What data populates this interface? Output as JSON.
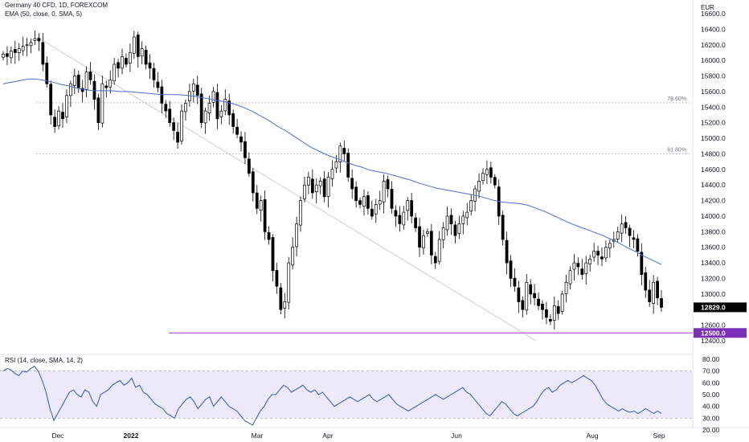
{
  "header": {
    "symbol_line": "Germany 40 CFD, 1D, FOREXCOM",
    "ema_line": "EMA (50, close, 0, SMA, 5)",
    "currency": "EUR"
  },
  "rsi_header": "RSI (14, close, SMA, 14, 2)",
  "colors": {
    "candle": "#000000",
    "ema": "#4a6fd8",
    "rsi": "#3556b5",
    "rsi_band": "#ece9fb",
    "support": "#a33dc9",
    "trendline": "#c4c4c4",
    "price_tag": "#000000",
    "support_tag": "#7b2fb8"
  },
  "chart_data": [
    {
      "type": "candlestick",
      "title": "Germany 40 CFD, 1D, FOREXCOM",
      "y_unit": "EUR",
      "ylim": [
        12100,
        16750
      ],
      "y_ticks": [
        "12400.0",
        "12600.0",
        "12800.0",
        "13000.0",
        "13200.0",
        "13400.0",
        "13600.0",
        "13800.0",
        "14000.0",
        "14200.0",
        "14400.0",
        "14600.0",
        "14800.0",
        "15000.0",
        "15200.0",
        "15400.0",
        "15600.0",
        "15800.0",
        "16000.0",
        "16200.0",
        "16400.0",
        "16600.0"
      ],
      "x_ticks": [
        "Dec",
        "2022",
        "Mar",
        "Apr",
        "Jun",
        "Aug",
        "Sep"
      ],
      "last_price": "12829.0",
      "fib_levels": [
        {
          "label": "78.60%",
          "value": 15455
        },
        {
          "label": "61.80%",
          "value": 14800
        }
      ],
      "support": {
        "label": "12500.0",
        "value": 12500
      },
      "ohlc_close": [
        16080,
        16050,
        16120,
        16100,
        16150,
        16180,
        16200,
        16230,
        16280,
        16250,
        15950,
        15700,
        15300,
        15150,
        15350,
        15250,
        15550,
        15700,
        15800,
        15650,
        15600,
        15850,
        15750,
        15500,
        15200,
        15700,
        15650,
        15750,
        15950,
        15900,
        16050,
        15950,
        16100,
        16300,
        16050,
        16150,
        15950,
        15900,
        15750,
        15650,
        15450,
        15350,
        15200,
        15100,
        14950,
        15350,
        15450,
        15600,
        15700,
        15550,
        15200,
        15350,
        15450,
        15600,
        15250,
        15350,
        15500,
        15300,
        15150,
        15050,
        14950,
        14750,
        14550,
        14300,
        14100,
        14200,
        13800,
        13700,
        13300,
        13100,
        12800,
        12900,
        13400,
        13600,
        13900,
        14200,
        14400,
        14500,
        14300,
        14400,
        14450,
        14250,
        14500,
        14600,
        14700,
        14900,
        14800,
        14500,
        14350,
        14200,
        14150,
        14250,
        14100,
        14000,
        14150,
        14200,
        14450,
        14350,
        14100,
        14000,
        13900,
        14050,
        14200,
        14000,
        13850,
        13600,
        13750,
        13800,
        13500,
        13400,
        13700,
        13850,
        14000,
        13900,
        13750,
        13900,
        14000,
        14050,
        14200,
        14350,
        14450,
        14550,
        14600,
        14500,
        14400,
        14000,
        13700,
        13400,
        13200,
        13100,
        12900,
        12800,
        13150,
        13000,
        12950,
        12850,
        12800,
        12700,
        12650,
        12850,
        12750,
        13000,
        13150,
        13300,
        13400,
        13350,
        13250,
        13400,
        13450,
        13550,
        13500,
        13450,
        13600,
        13650,
        13700,
        13800,
        13900,
        13850,
        13750,
        13700,
        13550,
        13250,
        13050,
        12900,
        13150,
        12950,
        12829
      ],
      "ema": [
        15700,
        15720,
        15740,
        15760,
        15760,
        15740,
        15720,
        15690,
        15670,
        15640,
        15620,
        15610,
        15610,
        15610,
        15600,
        15600,
        15590,
        15580,
        15570,
        15560,
        15560,
        15560,
        15550,
        15540,
        15520,
        15500,
        15480,
        15460,
        15430,
        15390,
        15340,
        15280,
        15220,
        15150,
        15090,
        15020,
        14950,
        14880,
        14830,
        14780,
        14740,
        14700,
        14660,
        14630,
        14590,
        14570,
        14550,
        14520,
        14490,
        14460,
        14420,
        14390,
        14360,
        14340,
        14320,
        14300,
        14280,
        14260,
        14230,
        14200,
        14180,
        14170,
        14160,
        14140,
        14100,
        14060,
        14010,
        13960,
        13910,
        13870,
        13830,
        13790,
        13750,
        13700,
        13650,
        13590,
        13540,
        13480,
        13430,
        13380
      ],
      "rsi": {
        "title": "RSI (14, close, SMA, 14, 2)",
        "ylim": [
          20,
          80
        ],
        "y_ticks": [
          "20.00",
          "30.00",
          "40.00",
          "50.00",
          "60.00",
          "70.00",
          "80.00"
        ],
        "band": [
          30,
          70
        ],
        "values": [
          70,
          72,
          71,
          68,
          66,
          70,
          69,
          72,
          74,
          70,
          62,
          52,
          38,
          28,
          34,
          40,
          46,
          52,
          54,
          50,
          48,
          54,
          52,
          44,
          40,
          50,
          52,
          54,
          58,
          60,
          62,
          58,
          60,
          64,
          56,
          58,
          52,
          50,
          46,
          42,
          40,
          38,
          34,
          32,
          30,
          38,
          42,
          46,
          48,
          44,
          38,
          42,
          46,
          48,
          40,
          44,
          48,
          44,
          40,
          38,
          36,
          32,
          28,
          26,
          24,
          30,
          36,
          40,
          46,
          50,
          50,
          54,
          58,
          56,
          52,
          54,
          56,
          58,
          54,
          52,
          54,
          50,
          52,
          48,
          44,
          40,
          42,
          44,
          46,
          48,
          46,
          44,
          46,
          48,
          50,
          46,
          44,
          46,
          48,
          50,
          46,
          42,
          40,
          38,
          36,
          38,
          40,
          42,
          44,
          46,
          48,
          50,
          48,
          46,
          48,
          50,
          52,
          54,
          56,
          52,
          50,
          46,
          42,
          38,
          34,
          32,
          36,
          40,
          44,
          42,
          38,
          34,
          32,
          34,
          36,
          38,
          40,
          44,
          50,
          54,
          56,
          52,
          54,
          58,
          60,
          62,
          60,
          62,
          64,
          66,
          64,
          62,
          58,
          52,
          46,
          42,
          40,
          38,
          36,
          38,
          36,
          35,
          36,
          34,
          36,
          38,
          36,
          34,
          36,
          34
        ]
      }
    }
  ]
}
